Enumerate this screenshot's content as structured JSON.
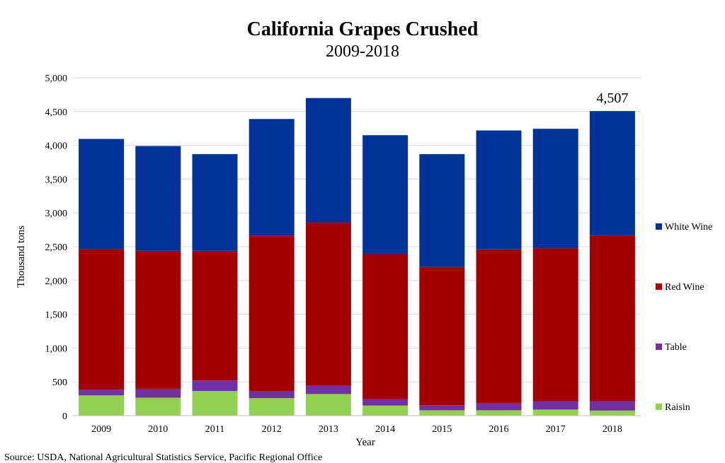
{
  "chart_data": {
    "type": "bar",
    "stacked": true,
    "title": "California Grapes Crushed",
    "subtitle": "2009-2018",
    "xlabel": "Year",
    "ylabel": "Thousand tons",
    "ylim": [
      0,
      5000
    ],
    "yticks": [
      "0",
      "500",
      "1,000",
      "1,500",
      "2,000",
      "2,500",
      "3,000",
      "3,500",
      "4,000",
      "4,500",
      "5,000"
    ],
    "categories": [
      "2009",
      "2010",
      "2011",
      "2012",
      "2013",
      "2014",
      "2015",
      "2016",
      "2017",
      "2018"
    ],
    "series": [
      {
        "name": "Raisin",
        "color": "#92d050",
        "values": [
          300,
          265,
          365,
          260,
          320,
          150,
          80,
          80,
          90,
          75
        ]
      },
      {
        "name": "Table",
        "color": "#7030a0",
        "values": [
          85,
          125,
          155,
          100,
          125,
          95,
          75,
          100,
          125,
          140
        ]
      },
      {
        "name": "Red Wine",
        "color": "#a50000",
        "values": [
          2080,
          2050,
          1920,
          2300,
          2415,
          2145,
          2045,
          2280,
          2260,
          2450
        ]
      },
      {
        "name": "White Wine",
        "color": "#003399",
        "values": [
          1630,
          1550,
          1430,
          1730,
          1840,
          1760,
          1670,
          1760,
          1770,
          1842
        ]
      }
    ],
    "legend_position": "right",
    "legend_order": [
      "White Wine",
      "Red Wine",
      "Table",
      "Raisin"
    ],
    "grid": true,
    "annotations": [
      {
        "category": "2018",
        "text": "4,507"
      }
    ]
  },
  "source": "Source: USDA, National Agricultural Statistics Service, Pacific Regional Office"
}
